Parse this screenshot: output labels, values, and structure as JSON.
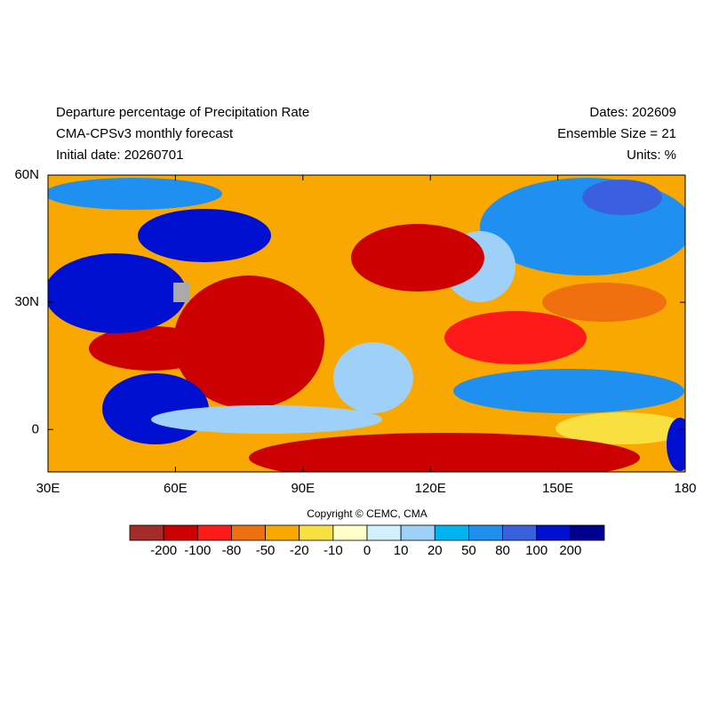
{
  "header": {
    "left": [
      "Departure percentage of Precipitation Rate",
      "CMA-CPSv3 monthly forecast",
      "Initial date: 20260701"
    ],
    "right": [
      "Dates: 202609",
      "Ensemble Size = 21",
      "Units: %"
    ]
  },
  "map": {
    "xlim": [
      30,
      180
    ],
    "ylim": [
      -10,
      60
    ],
    "xticks": [
      {
        "value": 30,
        "label": "30E"
      },
      {
        "value": 60,
        "label": "60E"
      },
      {
        "value": 90,
        "label": "90E"
      },
      {
        "value": 120,
        "label": "120E"
      },
      {
        "value": 150,
        "label": "150E"
      },
      180
    ],
    "yticks": [
      {
        "value": 60,
        "label": "60N"
      },
      {
        "value": 30,
        "label": "30N"
      },
      0
    ]
  },
  "copyright": "Copyright © CEMC, CMA",
  "colorbar": {
    "colors": [
      "#a52a2a",
      "#cc0000",
      "#ff1a1a",
      "#f07010",
      "#f8a800",
      "#f8e040",
      "#ffffc8",
      "#d0f0ff",
      "#9fd0f8",
      "#00b4f0",
      "#2090f0",
      "#3a60e0",
      "#0010d0",
      "#000090"
    ],
    "levels": [
      -200,
      -100,
      -80,
      -50,
      -20,
      -10,
      0,
      10,
      20,
      50,
      80,
      100,
      200
    ]
  }
}
